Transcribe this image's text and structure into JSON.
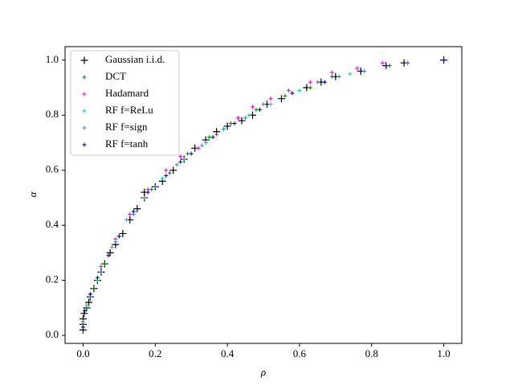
{
  "chart_data": {
    "type": "scatter",
    "x_label": "ρ",
    "y_label": "α",
    "xlim": [
      -0.05,
      1.05
    ],
    "ylim": [
      -0.029,
      1.049
    ],
    "xticks": [
      {
        "value": 0,
        "label": "0.0"
      },
      0.2,
      0.4,
      0.6,
      0.8,
      {
        "value": 1,
        "label": "1.0"
      }
    ],
    "yticks": [
      {
        "value": 0,
        "label": "0.0"
      },
      0.2,
      0.4,
      0.6,
      0.8,
      {
        "value": 1,
        "label": "1.0"
      }
    ],
    "legend": "upper left",
    "series": [
      {
        "name": "Gaussian i.i.d.",
        "color": "#000000",
        "x": [
          0,
          0,
          0,
          0.003,
          0.01,
          0.016,
          0.02,
          0.03,
          0.04,
          0.05,
          0.06,
          0.075,
          0.09,
          0.11,
          0.13,
          0.15,
          0.17,
          0.17,
          0.2,
          0.22,
          0.25,
          0.28,
          0.31,
          0.34,
          0.37,
          0.4,
          0.44,
          0.47,
          0.51,
          0.55,
          0.62,
          0.66,
          0.7,
          0.77,
          0.84,
          0.89,
          1.0
        ],
        "values": [
          0.02,
          0.04,
          0.06,
          0.08,
          0.1,
          0.12,
          0.14,
          0.17,
          0.2,
          0.23,
          0.26,
          0.3,
          0.33,
          0.37,
          0.42,
          0.46,
          0.5,
          0.52,
          0.54,
          0.56,
          0.6,
          0.64,
          0.68,
          0.71,
          0.74,
          0.76,
          0.78,
          0.8,
          0.84,
          0.86,
          0.9,
          0.92,
          0.94,
          0.96,
          0.98,
          0.99,
          1.0
        ]
      },
      {
        "name": "DCT",
        "color": "#008000",
        "x": [
          0,
          0.01,
          0.03,
          0.06,
          0.1,
          0.14,
          0.19,
          0.24,
          0.29,
          0.35,
          0.41,
          0.48,
          0.56,
          0.63,
          0.69,
          0.77,
          0.85,
          1.0
        ],
        "values": [
          0.04,
          0.1,
          0.17,
          0.26,
          0.36,
          0.45,
          0.53,
          0.59,
          0.66,
          0.72,
          0.77,
          0.82,
          0.87,
          0.9,
          0.94,
          0.96,
          0.98,
          1.0
        ]
      },
      {
        "name": "Hadamard",
        "color": "#e000e0",
        "x": [
          0,
          0.02,
          0.05,
          0.09,
          0.13,
          0.18,
          0.23,
          0.27,
          0.32,
          0.37,
          0.43,
          0.47,
          0.52,
          0.57,
          0.63,
          0.69,
          0.76,
          0.83,
          0.9,
          1.0
        ],
        "values": [
          0.05,
          0.15,
          0.25,
          0.35,
          0.44,
          0.53,
          0.6,
          0.65,
          0.68,
          0.73,
          0.79,
          0.83,
          0.86,
          0.89,
          0.92,
          0.955,
          0.97,
          0.99,
          0.99,
          1.0
        ]
      },
      {
        "name": "RF f=ReLu",
        "color": "#00c8c8",
        "x": [
          0,
          0.01,
          0.04,
          0.08,
          0.12,
          0.17,
          0.22,
          0.28,
          0.34,
          0.39,
          0.46,
          0.52,
          0.6,
          0.67,
          0.74,
          0.84,
          1.0
        ],
        "values": [
          0.03,
          0.11,
          0.2,
          0.32,
          0.42,
          0.5,
          0.57,
          0.64,
          0.7,
          0.75,
          0.8,
          0.84,
          0.89,
          0.92,
          0.95,
          0.98,
          1.0
        ]
      },
      {
        "name": "RF f=sign",
        "color": "#3f7fbf",
        "x": [
          0,
          0.02,
          0.05,
          0.09,
          0.14,
          0.2,
          0.26,
          0.33,
          0.39,
          0.45,
          0.5,
          0.58,
          0.65,
          0.71,
          0.78,
          0.9,
          1.0
        ],
        "values": [
          0.05,
          0.14,
          0.23,
          0.34,
          0.44,
          0.54,
          0.62,
          0.69,
          0.75,
          0.79,
          0.84,
          0.88,
          0.92,
          0.94,
          0.96,
          0.99,
          1.0
        ]
      },
      {
        "name": "RF f=tanh",
        "color": "#000080",
        "x": [
          0,
          0.005,
          0.02,
          0.04,
          0.07,
          0.1,
          0.14,
          0.18,
          0.23,
          0.27,
          0.3,
          0.36,
          0.42,
          0.49,
          0.58,
          0.67,
          0.77,
          0.84,
          1.0
        ],
        "values": [
          0.03,
          0.09,
          0.15,
          0.21,
          0.29,
          0.36,
          0.45,
          0.52,
          0.58,
          0.63,
          0.66,
          0.72,
          0.77,
          0.82,
          0.88,
          0.92,
          0.96,
          0.98,
          1.0
        ]
      }
    ]
  }
}
